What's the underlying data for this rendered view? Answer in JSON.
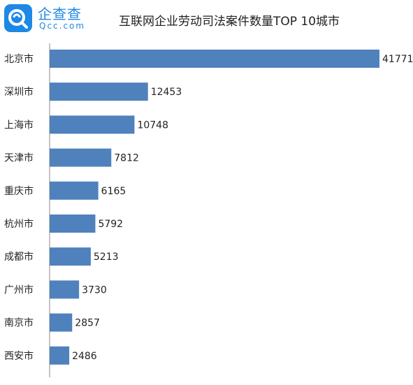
{
  "logo": {
    "name": "企查查",
    "domain": "Qcc.com",
    "color": "#1e88e5"
  },
  "chart_data": {
    "type": "bar",
    "orientation": "horizontal",
    "title": "互联网企业劳动司法案件数量TOP 10城市",
    "categories": [
      "北京市",
      "深圳市",
      "上海市",
      "天津市",
      "重庆市",
      "杭州市",
      "成都市",
      "广州市",
      "南京市",
      "西安市"
    ],
    "values": [
      41771,
      12453,
      10748,
      7812,
      6165,
      5792,
      5213,
      3730,
      2857,
      2486
    ],
    "xlim": [
      0,
      41771
    ],
    "bar_color": "#4f81bd",
    "data_labels": true,
    "grid": false
  }
}
